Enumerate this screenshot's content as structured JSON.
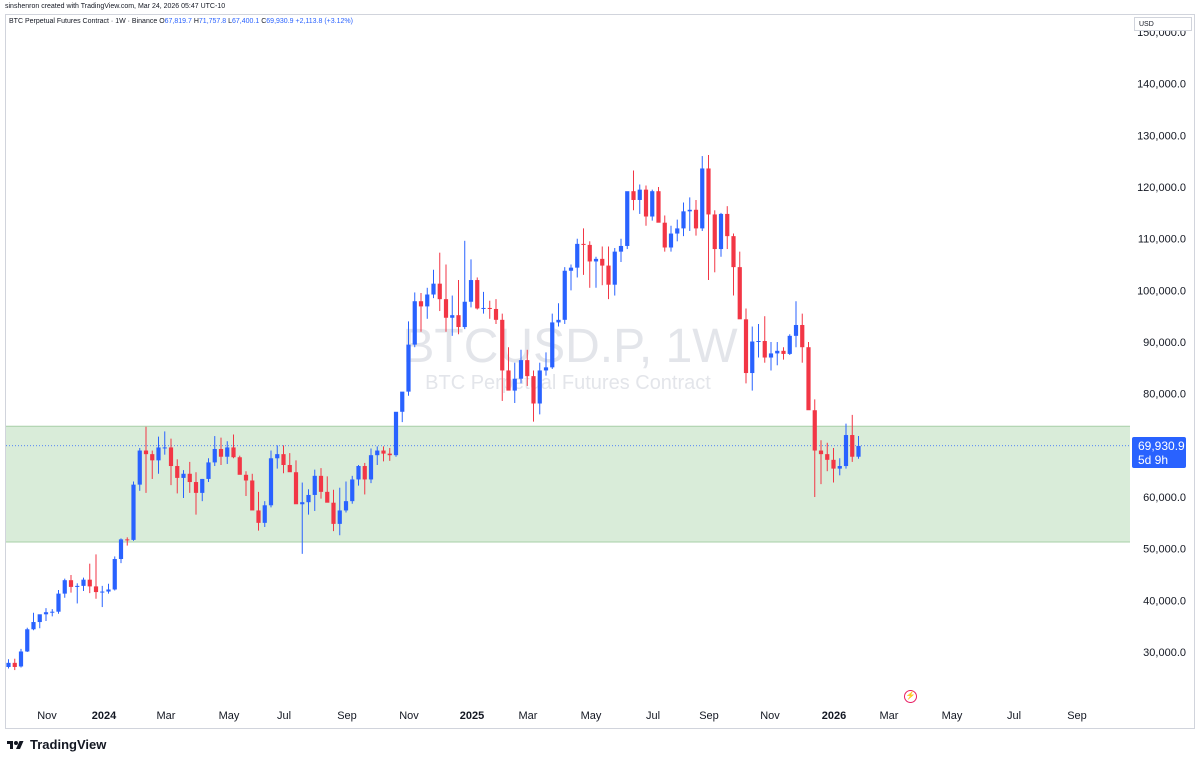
{
  "header": {
    "credit": "sinshenron created with TradingView.com, Mar 24, 2026 05:47 UTC-10"
  },
  "legend": {
    "symbol": "BTC Perpetual Futures Contract · 1W · Binance",
    "o_label": "O",
    "o": "67,819.7",
    "h_label": "H",
    "h": "71,757.8",
    "l_label": "L",
    "l": "67,400.1",
    "c_label": "C",
    "c": "69,930.9",
    "change": "+2,113.8 (+3.12%)"
  },
  "currency": "USD",
  "price_tag": {
    "price": "69,930.9",
    "countdown": "5d 9h"
  },
  "watermark": {
    "line1": "BTCUSD.P, 1W",
    "line2": "BTC Perpetual Futures Contract"
  },
  "footer": {
    "brand": "TradingView"
  },
  "colors": {
    "up": "#2962ff",
    "down": "#f23645",
    "zone_fill": "#d9ecd9",
    "zone_line": "#a7cfa7",
    "text": "#131722"
  },
  "chart_data": {
    "type": "candlestick",
    "title": "BTC Perpetual Futures Contract · 1W · Binance",
    "x_axis_labels": [
      "Nov",
      "2024",
      "Mar",
      "May",
      "Jul",
      "Sep",
      "Nov",
      "2025",
      "Mar",
      "May",
      "Jul",
      "Sep",
      "Nov",
      "2026",
      "Mar",
      "May",
      "Jul",
      "Sep"
    ],
    "y_axis_labels": [
      "30,000.0",
      "40,000.0",
      "50,000.0",
      "60,000.0",
      "70,000.0",
      "80,000.0",
      "90,000.0",
      "100,000.0",
      "110,000.0",
      "120,000.0",
      "130,000.0",
      "140,000.0",
      "150,000.0"
    ],
    "y_range": [
      22000,
      152000
    ],
    "support_zone": [
      51300,
      73700
    ],
    "last_price": 69930.9,
    "candles": [
      [
        27.1,
        28.6,
        26.8,
        27.9
      ],
      [
        27.9,
        28.7,
        26.5,
        27.1
      ],
      [
        27.2,
        30.6,
        27.0,
        30.1
      ],
      [
        30.1,
        34.7,
        30.0,
        34.4
      ],
      [
        34.4,
        37.6,
        34.2,
        35.8
      ],
      [
        35.8,
        37.0,
        34.6,
        37.3
      ],
      [
        37.3,
        38.5,
        36.0,
        37.7
      ],
      [
        37.7,
        38.3,
        36.9,
        37.8
      ],
      [
        37.8,
        42.0,
        37.4,
        41.3
      ],
      [
        41.3,
        44.2,
        40.5,
        43.9
      ],
      [
        43.9,
        44.9,
        41.5,
        42.6
      ],
      [
        42.6,
        43.3,
        39.4,
        42.8
      ],
      [
        42.8,
        44.4,
        41.8,
        44.0
      ],
      [
        44.0,
        47.1,
        41.4,
        42.7
      ],
      [
        42.7,
        48.9,
        40.3,
        41.6
      ],
      [
        41.6,
        42.8,
        38.7,
        41.7
      ],
      [
        41.7,
        43.2,
        41.3,
        42.1
      ],
      [
        42.1,
        48.5,
        41.9,
        48.0
      ],
      [
        48.0,
        52.0,
        47.2,
        51.8
      ],
      [
        51.8,
        52.2,
        50.6,
        51.7
      ],
      [
        51.7,
        63.0,
        51.5,
        62.4
      ],
      [
        62.4,
        69.5,
        61.2,
        69.0
      ],
      [
        69.0,
        73.6,
        60.8,
        68.3
      ],
      [
        68.3,
        69.0,
        63.5,
        67.1
      ],
      [
        67.1,
        71.7,
        64.5,
        69.6
      ],
      [
        69.6,
        72.7,
        68.2,
        69.6
      ],
      [
        69.6,
        71.3,
        62.3,
        66.0
      ],
      [
        66.0,
        67.3,
        60.7,
        63.7
      ],
      [
        63.7,
        65.2,
        59.8,
        64.5
      ],
      [
        64.5,
        66.8,
        60.8,
        62.9
      ],
      [
        62.9,
        64.8,
        56.6,
        60.8
      ],
      [
        60.8,
        63.5,
        59.2,
        63.5
      ],
      [
        63.5,
        67.5,
        62.9,
        66.7
      ],
      [
        66.7,
        71.8,
        66.0,
        69.3
      ],
      [
        69.3,
        71.5,
        66.2,
        67.8
      ],
      [
        67.8,
        70.8,
        66.4,
        69.6
      ],
      [
        69.6,
        72.1,
        67.5,
        67.7
      ],
      [
        67.7,
        68.0,
        64.6,
        64.3
      ],
      [
        64.3,
        65.0,
        60.2,
        63.2
      ],
      [
        63.2,
        64.5,
        58.5,
        57.4
      ],
      [
        57.4,
        61.0,
        53.5,
        55.0
      ],
      [
        55.0,
        59.2,
        54.2,
        58.4
      ],
      [
        58.4,
        69.0,
        58.0,
        67.5
      ],
      [
        67.5,
        70.0,
        65.5,
        68.3
      ],
      [
        68.3,
        70.0,
        64.6,
        66.2
      ],
      [
        66.2,
        68.5,
        65.4,
        64.8
      ],
      [
        64.8,
        67.1,
        60.2,
        58.6
      ],
      [
        58.6,
        62.8,
        49.0,
        59.0
      ],
      [
        59.0,
        61.5,
        56.6,
        60.4
      ],
      [
        60.4,
        65.3,
        57.3,
        64.1
      ],
      [
        64.1,
        65.6,
        59.7,
        61.0
      ],
      [
        61.0,
        64.0,
        59.3,
        58.9
      ],
      [
        58.9,
        61.4,
        53.4,
        54.8
      ],
      [
        54.8,
        61.8,
        52.6,
        57.4
      ],
      [
        57.4,
        63.0,
        57.0,
        59.2
      ],
      [
        59.2,
        64.1,
        58.7,
        63.4
      ],
      [
        63.4,
        66.2,
        62.2,
        66.0
      ],
      [
        66.0,
        66.6,
        60.5,
        63.4
      ],
      [
        63.4,
        69.4,
        62.7,
        68.1
      ],
      [
        68.1,
        69.8,
        66.2,
        69.0
      ],
      [
        69.0,
        69.8,
        66.9,
        68.4
      ],
      [
        68.4,
        69.5,
        67.0,
        68.1
      ],
      [
        68.1,
        73.6,
        67.8,
        76.5
      ],
      [
        76.5,
        80.0,
        74.5,
        80.4
      ],
      [
        80.4,
        94.0,
        79.6,
        89.5
      ],
      [
        89.5,
        99.6,
        89.0,
        97.9
      ],
      [
        97.9,
        99.5,
        92.0,
        96.9
      ],
      [
        96.9,
        100.5,
        94.5,
        99.2
      ],
      [
        99.2,
        104.0,
        98.5,
        101.3
      ],
      [
        101.3,
        107.3,
        96.0,
        98.3
      ],
      [
        98.3,
        105.0,
        92.0,
        94.7
      ],
      [
        94.7,
        99.0,
        91.2,
        95.2
      ],
      [
        95.2,
        102.0,
        91.5,
        92.9
      ],
      [
        92.9,
        109.6,
        92.5,
        97.8
      ],
      [
        97.8,
        106.0,
        96.7,
        102.0
      ],
      [
        102.0,
        102.5,
        96.3,
        96.5
      ],
      [
        96.5,
        99.7,
        95.5,
        96.6
      ],
      [
        96.6,
        98.0,
        94.5,
        96.4
      ],
      [
        96.4,
        98.3,
        93.5,
        94.3
      ],
      [
        94.3,
        95.5,
        78.6,
        84.5
      ],
      [
        84.5,
        89.0,
        81.0,
        80.6
      ],
      [
        80.6,
        86.0,
        78.2,
        82.9
      ],
      [
        82.9,
        88.5,
        82.0,
        86.5
      ],
      [
        86.5,
        88.5,
        81.5,
        83.4
      ],
      [
        83.4,
        84.5,
        74.6,
        78.1
      ],
      [
        78.1,
        86.0,
        76.0,
        84.5
      ],
      [
        84.5,
        88.0,
        83.5,
        85.1
      ],
      [
        85.1,
        95.5,
        84.8,
        93.8
      ],
      [
        93.8,
        97.5,
        93.0,
        94.3
      ],
      [
        94.3,
        104.5,
        93.5,
        103.8
      ],
      [
        103.8,
        105.0,
        100.0,
        104.4
      ],
      [
        104.4,
        110.0,
        102.5,
        109.0
      ],
      [
        109.0,
        112.0,
        103.0,
        108.8
      ],
      [
        108.8,
        109.5,
        100.5,
        105.6
      ],
      [
        105.6,
        106.5,
        100.5,
        106.1
      ],
      [
        106.1,
        108.5,
        101.0,
        104.8
      ],
      [
        104.8,
        108.5,
        98.3,
        101.1
      ],
      [
        101.1,
        108.2,
        99.0,
        107.5
      ],
      [
        107.5,
        110.0,
        105.5,
        108.6
      ],
      [
        108.6,
        118.5,
        108.0,
        119.2
      ],
      [
        119.2,
        123.2,
        115.5,
        117.5
      ],
      [
        117.5,
        120.5,
        114.8,
        119.5
      ],
      [
        119.5,
        120.3,
        112.5,
        114.3
      ],
      [
        114.3,
        119.5,
        113.5,
        119.2
      ],
      [
        119.2,
        120.0,
        113.5,
        113.1
      ],
      [
        113.1,
        114.5,
        107.5,
        108.3
      ],
      [
        108.3,
        112.5,
        107.5,
        111.0
      ],
      [
        111.0,
        113.7,
        109.5,
        112.0
      ],
      [
        112.0,
        117.0,
        110.5,
        115.3
      ],
      [
        115.3,
        118.0,
        111.5,
        115.6
      ],
      [
        115.6,
        117.5,
        110.6,
        112.0
      ],
      [
        112.0,
        126.0,
        111.5,
        123.6
      ],
      [
        123.6,
        126.2,
        102.0,
        114.7
      ],
      [
        114.7,
        115.5,
        103.5,
        108.0
      ],
      [
        108.0,
        115.0,
        106.5,
        114.8
      ],
      [
        114.8,
        116.3,
        108.0,
        110.5
      ],
      [
        110.5,
        111.0,
        99.0,
        104.5
      ],
      [
        104.5,
        107.5,
        98.0,
        94.4
      ],
      [
        94.4,
        96.5,
        82.0,
        84.0
      ],
      [
        84.0,
        93.0,
        80.6,
        90.1
      ],
      [
        90.1,
        93.5,
        87.0,
        90.2
      ],
      [
        90.2,
        95.0,
        86.0,
        87.0
      ],
      [
        87.0,
        90.0,
        84.5,
        87.8
      ],
      [
        87.8,
        90.0,
        85.5,
        88.3
      ],
      [
        88.3,
        89.0,
        86.6,
        87.7
      ],
      [
        87.7,
        91.5,
        87.5,
        91.2
      ],
      [
        91.2,
        97.9,
        89.0,
        93.3
      ],
      [
        93.3,
        95.5,
        86.0,
        89.0
      ],
      [
        89.0,
        90.0,
        84.0,
        76.8
      ],
      [
        76.8,
        78.9,
        60.0,
        69.0
      ],
      [
        69.0,
        71.0,
        62.5,
        68.3
      ],
      [
        68.3,
        70.5,
        65.0,
        67.2
      ],
      [
        67.2,
        69.5,
        62.8,
        65.5
      ],
      [
        65.5,
        67.5,
        64.2,
        66.0
      ],
      [
        66.0,
        74.2,
        65.5,
        72.0
      ],
      [
        72.0,
        75.9,
        66.8,
        67.8
      ],
      [
        67.8,
        71.8,
        67.4,
        69.9
      ]
    ]
  }
}
